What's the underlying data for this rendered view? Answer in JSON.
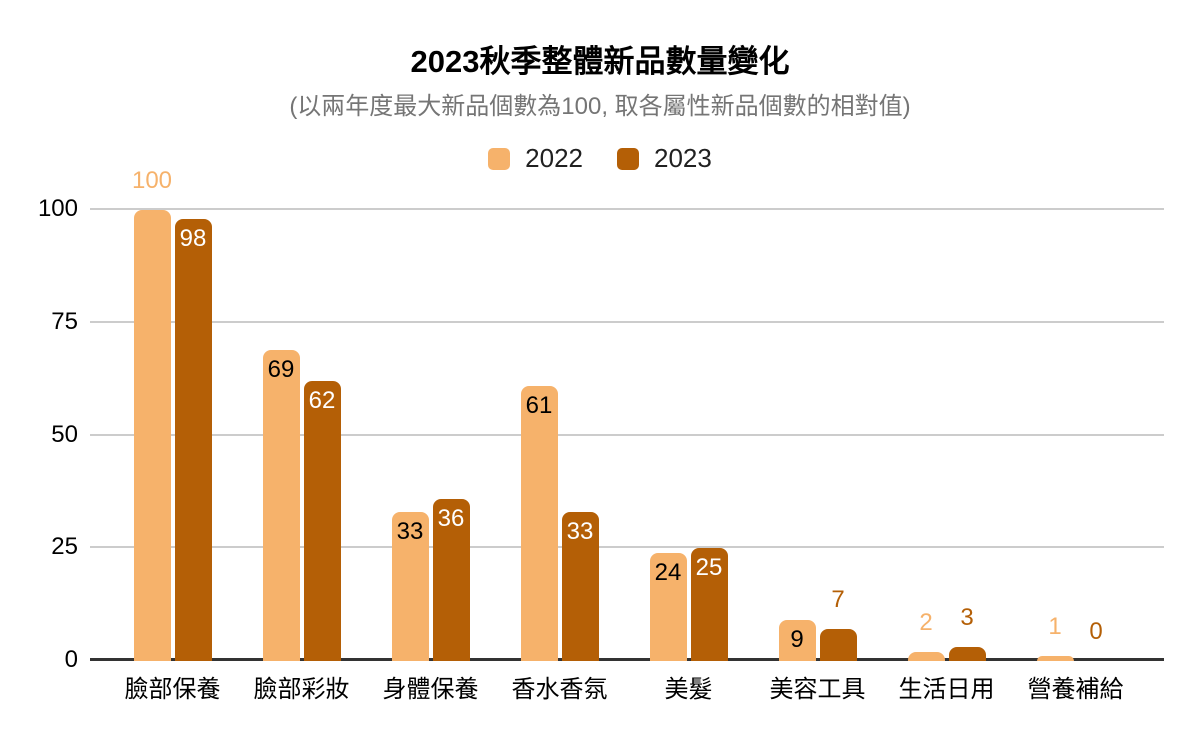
{
  "chart_data": {
    "type": "bar",
    "title": "2023秋季整體新品數量變化",
    "subtitle": "(以兩年度最大新品個數為100, 取各屬性新品個數的相對值)",
    "categories": [
      "臉部保養",
      "臉部彩妝",
      "身體保養",
      "香水香氛",
      "美髮",
      "美容工具",
      "生活日用",
      "營養補給"
    ],
    "series": [
      {
        "name": "2022",
        "color": "#F6B26B",
        "label_color_inside": "#000000",
        "values": [
          100,
          69,
          33,
          61,
          24,
          9,
          2,
          1
        ]
      },
      {
        "name": "2023",
        "color": "#B45F06",
        "label_color_inside": "#ffffff",
        "values": [
          98,
          62,
          36,
          33,
          25,
          7,
          3,
          0
        ]
      }
    ],
    "xlabel": "",
    "ylabel": "",
    "ylim": [
      0,
      100
    ],
    "yticks": [
      0,
      25,
      50,
      75,
      100
    ],
    "grid": true,
    "legend_position": "top",
    "colors": {
      "grid": "#cccccc",
      "axis": "#333333",
      "title": "#000000",
      "subtitle": "#757575",
      "tick_label": "#000000",
      "legend_label": "#212121"
    }
  }
}
